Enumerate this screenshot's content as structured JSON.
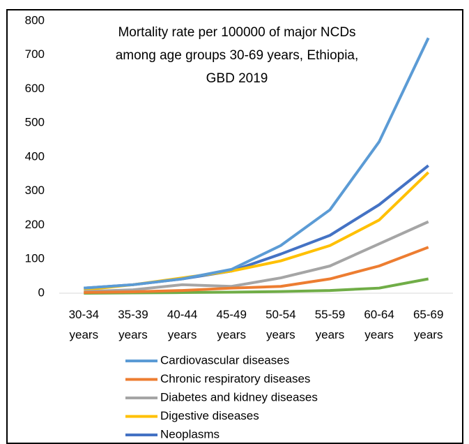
{
  "chart_data": {
    "type": "line",
    "title": [
      "Mortality rate per 100000 of major NCDs",
      "among age groups 30-69 years, Ethiopia,",
      "GBD 2019"
    ],
    "categories": [
      "30-34 years",
      "35-39 years",
      "40-44 years",
      "45-49 years",
      "50-54 years",
      "55-59 years",
      "60-64 years",
      "65-69 years"
    ],
    "series": [
      {
        "name": "Cardiovascular diseases",
        "color": "#5b9bd5",
        "values": [
          15,
          25,
          42,
          70,
          140,
          245,
          445,
          750
        ]
      },
      {
        "name": "Chronic respiratory diseases",
        "color": "#ed7d31",
        "values": [
          2,
          4,
          8,
          15,
          20,
          42,
          80,
          135
        ]
      },
      {
        "name": "Diabetes and kidney diseases",
        "color": "#a5a5a5",
        "values": [
          5,
          10,
          25,
          20,
          45,
          80,
          145,
          210
        ]
      },
      {
        "name": "Digestive diseases",
        "color": "#ffc000",
        "values": [
          10,
          25,
          45,
          65,
          95,
          140,
          215,
          355
        ]
      },
      {
        "name": "Neoplasms",
        "color": "#4472c4",
        "values": [
          15,
          25,
          42,
          65,
          115,
          170,
          260,
          375
        ]
      },
      {
        "color": "#70ad47",
        "values": [
          0,
          1,
          2,
          3,
          5,
          8,
          15,
          42
        ]
      }
    ],
    "ylim": [
      0,
      800
    ],
    "yticks": [
      0,
      100,
      200,
      300,
      400,
      500,
      600,
      700,
      800
    ],
    "grid": false
  }
}
